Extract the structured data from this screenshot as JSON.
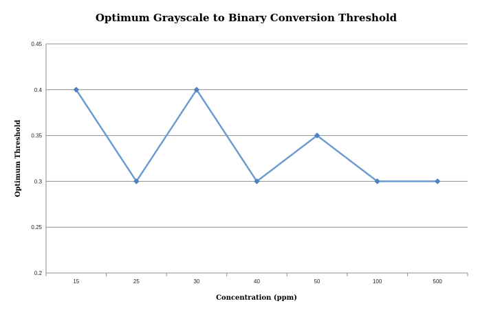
{
  "chart_data": {
    "type": "line",
    "title": "Optimum Grayscale to Binary  Conversion Threshold",
    "xlabel": "Concentration  (ppm)",
    "ylabel": "Optimum  Threshold",
    "categories": [
      "15",
      "25",
      "30",
      "40",
      "50",
      "100",
      "500"
    ],
    "series": [
      {
        "values": [
          0.4,
          0.3,
          0.4,
          0.3,
          0.35,
          0.3,
          0.3
        ]
      }
    ],
    "ylim": [
      0.2,
      0.45
    ],
    "yticks": [
      0.2,
      0.25,
      0.3,
      0.35,
      0.4,
      0.45
    ],
    "ytick_labels": [
      "0.2",
      "0.25",
      "0.3",
      "0.35",
      "0.4",
      "0.45"
    ],
    "grid": true,
    "legend": "none",
    "colors": {
      "line": "#6b9bd1",
      "marker": "#4f81bd",
      "grid": "#8c8c8c"
    }
  }
}
